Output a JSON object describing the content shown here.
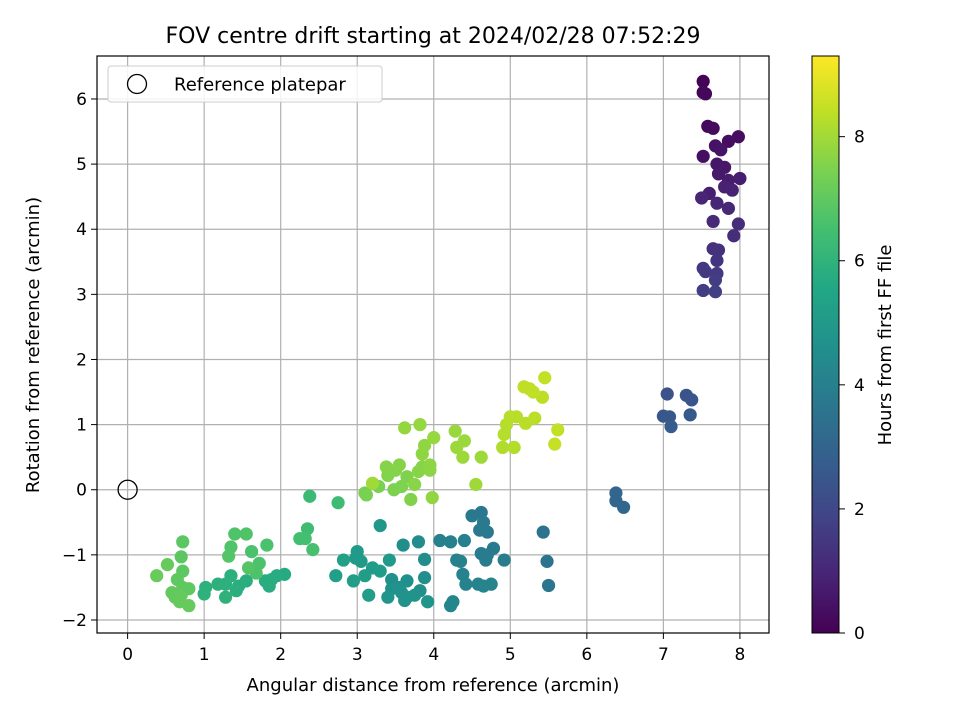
{
  "chart_data": {
    "type": "scatter",
    "title": "FOV centre drift starting at 2024/02/28 07:52:29",
    "xlabel": "Angular distance from reference (arcmin)",
    "ylabel": "Rotation from reference (arcmin)",
    "xlim": [
      -0.4,
      8.38
    ],
    "ylim": [
      -2.2,
      6.66
    ],
    "xticks": [
      0,
      1,
      2,
      3,
      4,
      5,
      6,
      7,
      8
    ],
    "yticks": [
      -2,
      -1,
      0,
      1,
      2,
      3,
      4,
      5,
      6
    ],
    "grid": true,
    "legend": {
      "position": "top-left",
      "entries": [
        {
          "label": "Reference platepar",
          "marker": "open-circle"
        }
      ]
    },
    "reference_point": {
      "x": 0,
      "y": 0
    },
    "colorbar": {
      "label": "Hours from first FF file",
      "range": [
        0,
        9.3
      ],
      "ticks": [
        0,
        2,
        4,
        6,
        8
      ],
      "colormap": "viridis"
    },
    "points": [
      [
        7.52,
        6.27,
        0.05
      ],
      [
        7.52,
        6.1,
        0.1
      ],
      [
        7.55,
        6.08,
        0.15
      ],
      [
        7.58,
        5.58,
        0.2
      ],
      [
        7.65,
        5.55,
        0.25
      ],
      [
        7.85,
        5.35,
        0.3
      ],
      [
        7.98,
        5.42,
        0.35
      ],
      [
        7.52,
        5.12,
        0.4
      ],
      [
        7.68,
        5.28,
        0.45
      ],
      [
        7.75,
        5.22,
        0.5
      ],
      [
        7.7,
        5.0,
        0.55
      ],
      [
        7.8,
        4.95,
        0.6
      ],
      [
        7.72,
        4.85,
        0.65
      ],
      [
        7.85,
        4.75,
        0.7
      ],
      [
        8.0,
        4.78,
        0.75
      ],
      [
        7.6,
        4.55,
        0.8
      ],
      [
        7.8,
        4.65,
        0.85
      ],
      [
        7.9,
        4.6,
        0.9
      ],
      [
        7.5,
        4.48,
        0.95
      ],
      [
        7.7,
        4.4,
        1.0
      ],
      [
        7.85,
        4.32,
        1.05
      ],
      [
        7.65,
        4.12,
        1.1
      ],
      [
        7.98,
        4.08,
        1.15
      ],
      [
        7.92,
        3.9,
        1.2
      ],
      [
        7.65,
        3.7,
        1.3
      ],
      [
        7.72,
        3.68,
        1.35
      ],
      [
        7.7,
        3.52,
        1.4
      ],
      [
        7.52,
        3.4,
        1.5
      ],
      [
        7.55,
        3.35,
        1.55
      ],
      [
        7.7,
        3.32,
        1.6
      ],
      [
        7.68,
        3.22,
        1.65
      ],
      [
        7.52,
        3.06,
        1.7
      ],
      [
        7.68,
        3.04,
        1.75
      ],
      [
        7.05,
        1.47,
        2.35
      ],
      [
        7.3,
        1.45,
        2.4
      ],
      [
        7.37,
        1.38,
        2.45
      ],
      [
        7.0,
        1.13,
        2.5
      ],
      [
        7.08,
        1.12,
        2.55
      ],
      [
        7.35,
        1.15,
        2.6
      ],
      [
        7.1,
        0.97,
        2.65
      ],
      [
        6.38,
        -0.05,
        3.0
      ],
      [
        6.38,
        -0.17,
        3.05
      ],
      [
        6.48,
        -0.27,
        3.1
      ],
      [
        5.43,
        -0.65,
        3.5
      ],
      [
        5.48,
        -1.1,
        3.55
      ],
      [
        5.5,
        -1.47,
        3.6
      ],
      [
        4.62,
        -0.35,
        3.7
      ],
      [
        4.5,
        -0.4,
        3.72
      ],
      [
        4.65,
        -0.5,
        3.74
      ],
      [
        4.6,
        -0.62,
        3.76
      ],
      [
        4.7,
        -0.65,
        3.78
      ],
      [
        4.78,
        -0.9,
        3.8
      ],
      [
        4.62,
        -0.98,
        3.82
      ],
      [
        4.7,
        -1.0,
        3.84
      ],
      [
        4.92,
        -1.08,
        3.86
      ],
      [
        4.68,
        -1.08,
        3.88
      ],
      [
        4.4,
        -0.78,
        4.0
      ],
      [
        4.22,
        -0.8,
        4.02
      ],
      [
        4.08,
        -0.78,
        4.04
      ],
      [
        4.3,
        -1.08,
        4.06
      ],
      [
        4.35,
        -1.1,
        4.08
      ],
      [
        4.38,
        -1.3,
        4.1
      ],
      [
        4.42,
        -1.45,
        4.12
      ],
      [
        4.58,
        -1.45,
        4.14
      ],
      [
        4.75,
        -1.45,
        4.16
      ],
      [
        4.65,
        -1.48,
        4.18
      ],
      [
        4.25,
        -1.72,
        4.2
      ],
      [
        4.22,
        -1.78,
        4.22
      ],
      [
        3.8,
        -0.8,
        4.5
      ],
      [
        3.6,
        -0.85,
        4.52
      ],
      [
        3.88,
        -1.07,
        4.54
      ],
      [
        3.88,
        -1.35,
        4.56
      ],
      [
        3.82,
        -1.55,
        4.58
      ],
      [
        3.65,
        -1.4,
        4.6
      ],
      [
        3.45,
        -1.38,
        4.62
      ],
      [
        3.55,
        -1.5,
        4.64
      ],
      [
        3.45,
        -1.52,
        4.66
      ],
      [
        3.58,
        -1.58,
        4.68
      ],
      [
        3.62,
        -1.7,
        4.7
      ],
      [
        3.65,
        -1.65,
        4.72
      ],
      [
        3.75,
        -1.62,
        4.74
      ],
      [
        3.92,
        -1.72,
        4.76
      ],
      [
        3.4,
        -1.65,
        4.78
      ],
      [
        3.3,
        -0.55,
        4.9
      ],
      [
        3.42,
        -1.08,
        5.0
      ],
      [
        3.0,
        -0.95,
        5.02
      ],
      [
        2.98,
        -1.05,
        5.04
      ],
      [
        3.05,
        -1.1,
        5.06
      ],
      [
        3.2,
        -1.2,
        5.08
      ],
      [
        3.3,
        -1.25,
        5.1
      ],
      [
        3.1,
        -1.32,
        5.12
      ],
      [
        2.95,
        -1.4,
        5.14
      ],
      [
        3.15,
        -1.62,
        5.16
      ],
      [
        2.82,
        -1.08,
        5.2
      ],
      [
        2.72,
        -1.32,
        5.22
      ],
      [
        2.05,
        -1.3,
        5.7
      ],
      [
        1.95,
        -1.32,
        5.72
      ],
      [
        1.88,
        -1.38,
        5.74
      ],
      [
        1.8,
        -1.4,
        5.76
      ],
      [
        1.85,
        -1.48,
        5.78
      ],
      [
        1.55,
        -1.4,
        5.8
      ],
      [
        1.45,
        -1.48,
        5.82
      ],
      [
        1.42,
        -1.55,
        5.84
      ],
      [
        1.35,
        -1.32,
        5.86
      ],
      [
        1.28,
        -1.45,
        5.88
      ],
      [
        1.18,
        -1.45,
        5.9
      ],
      [
        1.02,
        -1.5,
        5.92
      ],
      [
        1.0,
        -1.6,
        5.94
      ],
      [
        1.28,
        -1.65,
        5.96
      ],
      [
        2.38,
        -0.1,
        6.3
      ],
      [
        2.75,
        -0.2,
        6.35
      ],
      [
        2.35,
        -0.6,
        6.4
      ],
      [
        2.25,
        -0.75,
        6.45
      ],
      [
        2.32,
        -0.75,
        6.5
      ],
      [
        2.42,
        -0.92,
        6.55
      ],
      [
        1.82,
        -0.85,
        6.6
      ],
      [
        1.62,
        -0.95,
        6.62
      ],
      [
        1.72,
        -1.13,
        6.64
      ],
      [
        1.68,
        -1.28,
        6.66
      ],
      [
        1.4,
        -0.68,
        6.7
      ],
      [
        1.55,
        -0.68,
        6.72
      ],
      [
        1.35,
        -0.88,
        6.74
      ],
      [
        1.32,
        -1.02,
        6.76
      ],
      [
        1.58,
        -1.2,
        6.78
      ],
      [
        0.72,
        -0.8,
        6.9
      ],
      [
        0.7,
        -1.03,
        6.92
      ],
      [
        0.72,
        -1.25,
        6.94
      ],
      [
        0.65,
        -1.38,
        6.96
      ],
      [
        0.72,
        -1.5,
        6.98
      ],
      [
        0.8,
        -1.52,
        7.0
      ],
      [
        0.58,
        -1.58,
        7.02
      ],
      [
        0.62,
        -1.65,
        7.04
      ],
      [
        0.7,
        -1.62,
        7.06
      ],
      [
        0.68,
        -1.72,
        7.08
      ],
      [
        0.8,
        -1.78,
        7.1
      ],
      [
        0.52,
        -1.15,
        7.12
      ],
      [
        0.38,
        -1.32,
        7.14
      ],
      [
        3.1,
        -0.05,
        7.4
      ],
      [
        3.12,
        -0.08,
        7.42
      ],
      [
        3.28,
        0.05,
        7.44
      ],
      [
        3.48,
        0.0,
        7.46
      ],
      [
        3.58,
        0.05,
        7.48
      ],
      [
        3.65,
        0.2,
        7.5
      ],
      [
        3.7,
        -0.15,
        7.52
      ],
      [
        3.4,
        0.22,
        7.54
      ],
      [
        3.5,
        0.3,
        7.56
      ],
      [
        3.38,
        0.35,
        7.58
      ],
      [
        3.55,
        0.38,
        7.6
      ],
      [
        3.85,
        0.35,
        7.62
      ],
      [
        3.8,
        0.28,
        7.64
      ],
      [
        3.75,
        0.08,
        7.66
      ],
      [
        3.95,
        0.3,
        7.68
      ],
      [
        3.95,
        0.38,
        7.7
      ],
      [
        3.85,
        0.55,
        7.72
      ],
      [
        3.88,
        0.68,
        7.74
      ],
      [
        3.98,
        -0.12,
        7.76
      ],
      [
        3.62,
        0.95,
        7.8
      ],
      [
        3.82,
        1.0,
        7.82
      ],
      [
        4.0,
        0.8,
        7.84
      ],
      [
        4.28,
        0.9,
        7.86
      ],
      [
        4.4,
        0.75,
        7.88
      ],
      [
        4.3,
        0.65,
        7.9
      ],
      [
        4.38,
        0.5,
        7.92
      ],
      [
        4.62,
        0.5,
        7.94
      ],
      [
        4.55,
        0.08,
        7.96
      ],
      [
        3.2,
        0.1,
        7.98
      ],
      [
        4.9,
        0.65,
        8.2
      ],
      [
        5.05,
        0.65,
        8.22
      ],
      [
        4.92,
        0.85,
        8.24
      ],
      [
        4.95,
        1.0,
        8.26
      ],
      [
        5.0,
        1.12,
        8.28
      ],
      [
        5.08,
        1.12,
        8.3
      ],
      [
        5.2,
        1.02,
        8.32
      ],
      [
        5.32,
        1.1,
        8.34
      ],
      [
        5.42,
        1.42,
        8.36
      ],
      [
        5.18,
        1.58,
        8.38
      ],
      [
        5.25,
        1.55,
        8.4
      ],
      [
        5.3,
        1.5,
        8.42
      ],
      [
        5.45,
        1.72,
        8.44
      ],
      [
        5.62,
        0.92,
        8.46
      ],
      [
        5.58,
        0.7,
        8.48
      ]
    ]
  }
}
